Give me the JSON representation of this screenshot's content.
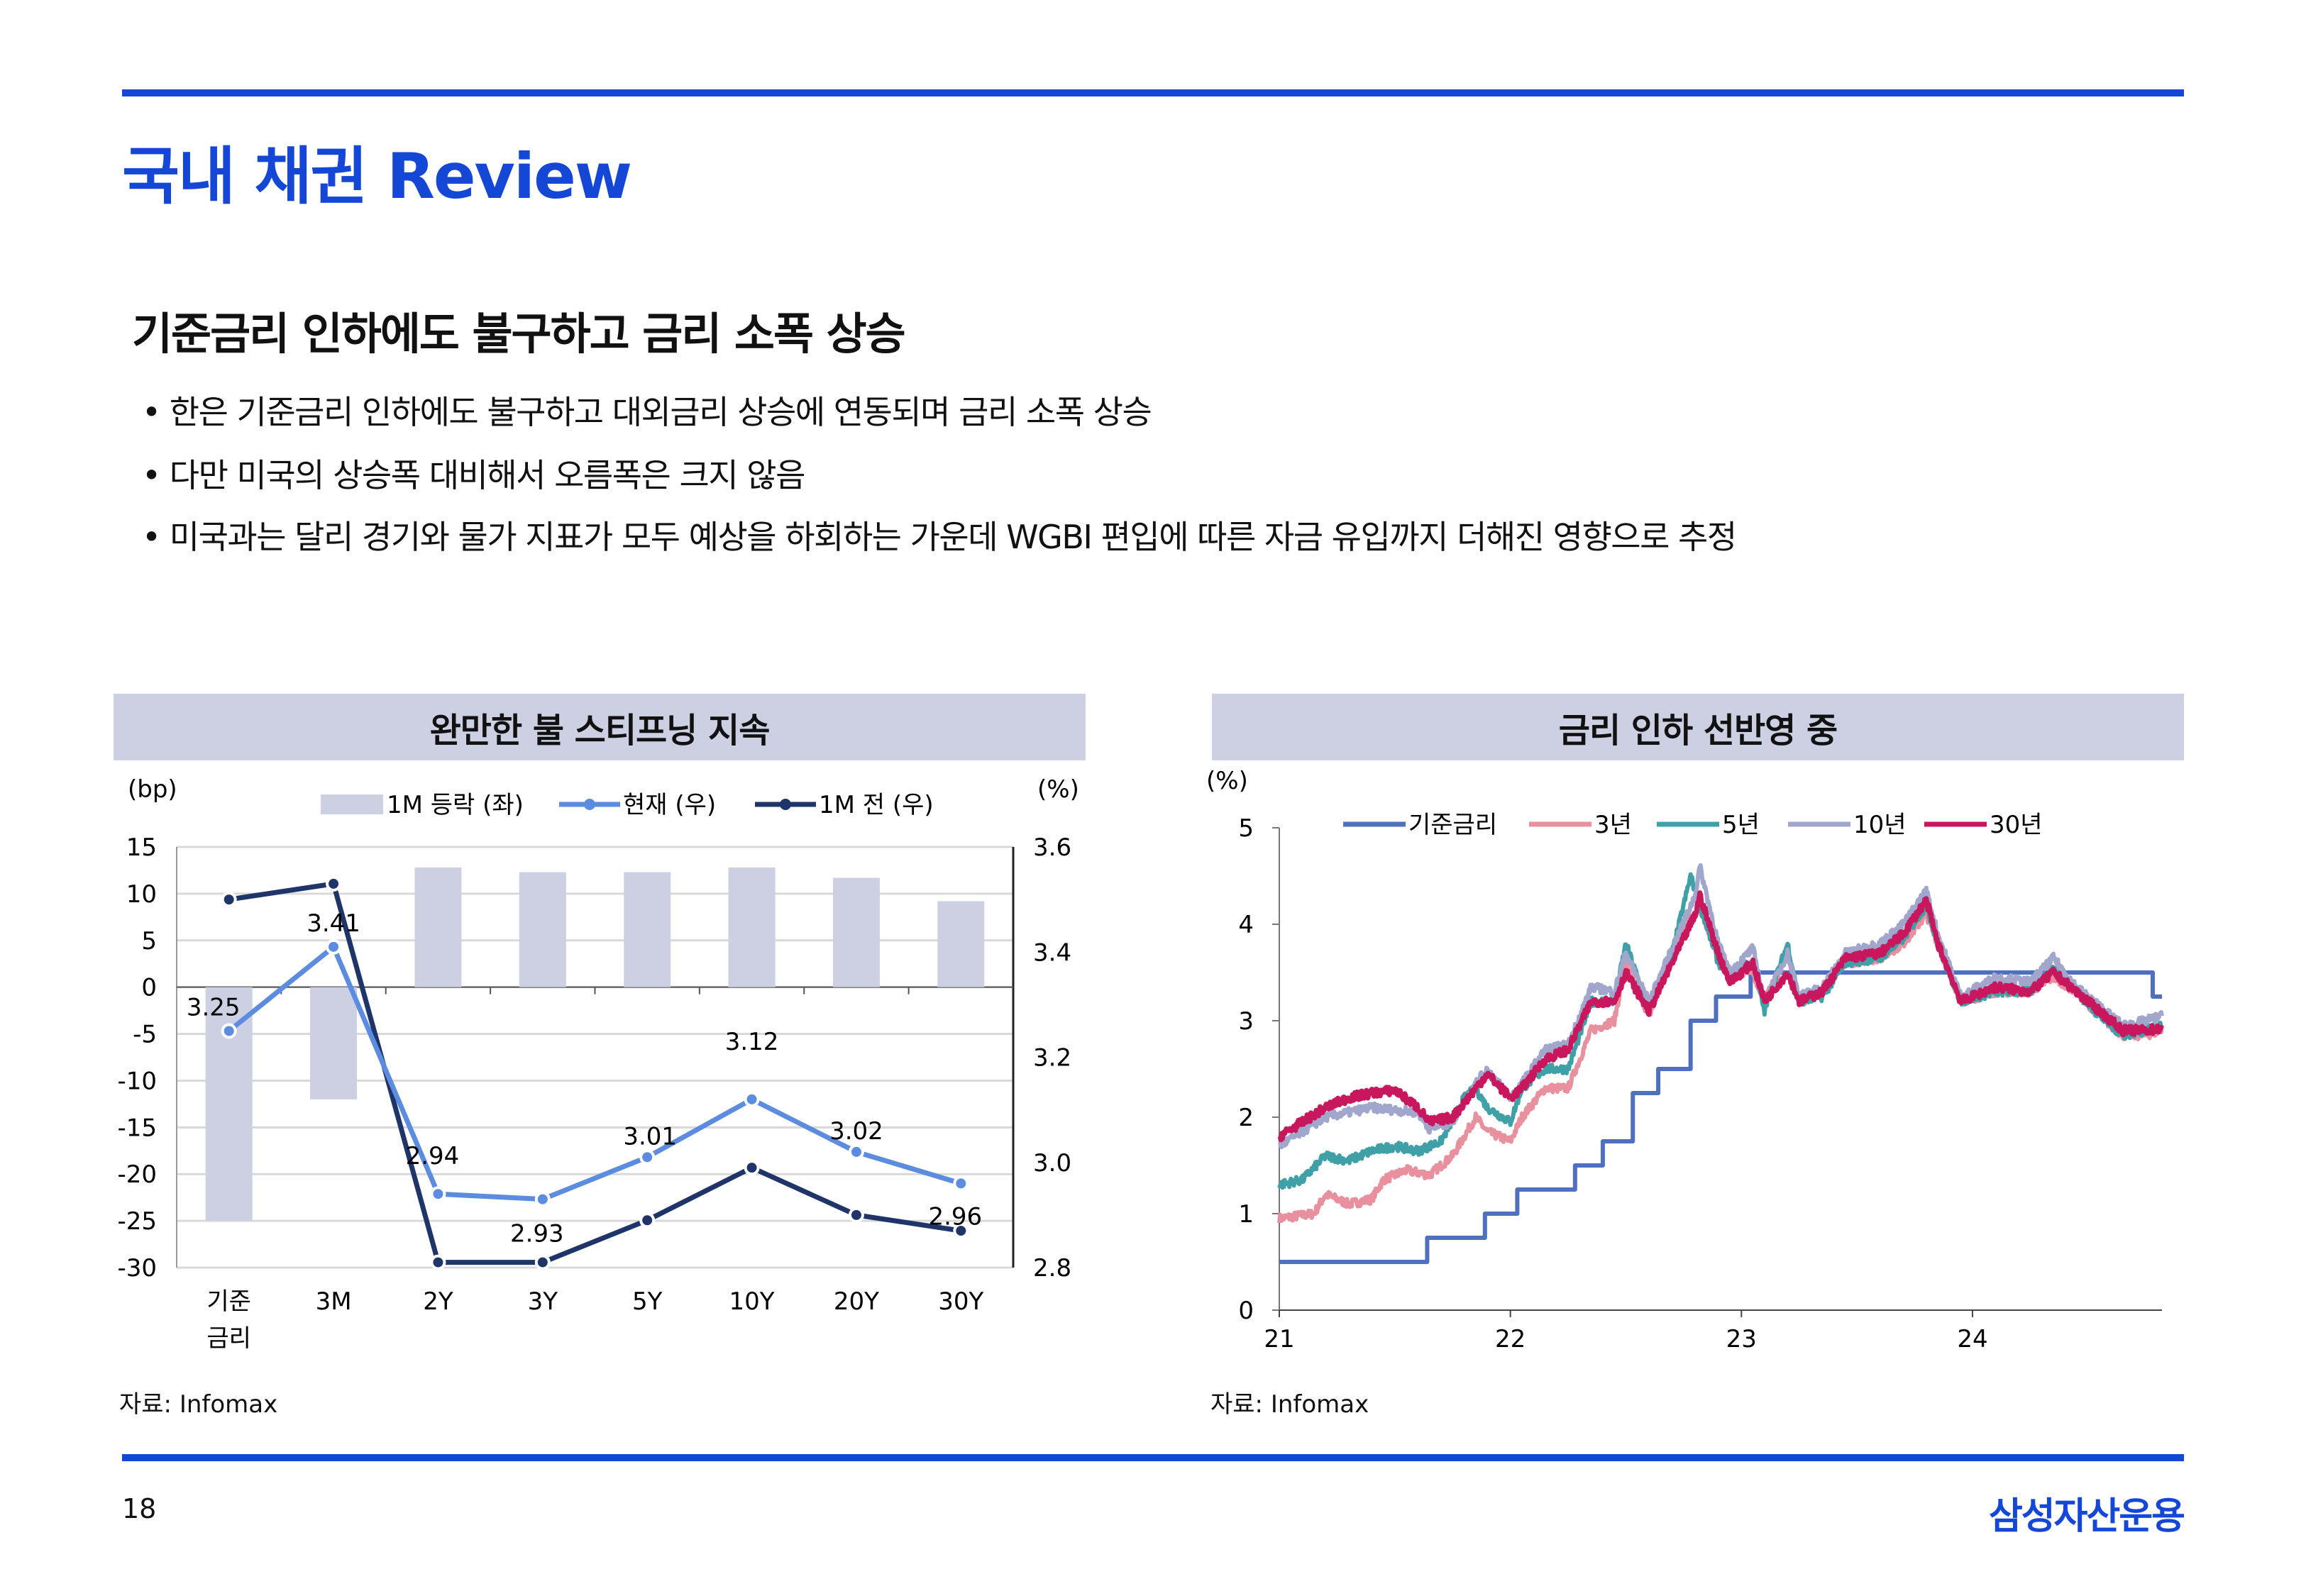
{
  "header": {
    "title": "국내 채권 Review"
  },
  "section": {
    "subtitle": "기준금리 인하에도 불구하고 금리 소폭 상승",
    "bullets": [
      "한은 기준금리 인하에도 불구하고 대외금리 상승에 연동되며 금리 소폭 상승",
      "다만 미국의 상승폭 대비해서 오름폭은 크지 않음",
      "미국과는 달리 경기와 물가 지표가 모두 예상을 하회하는 가운데 WGBI 편입에 따른 자금 유입까지 더해진 영향으로 추정"
    ]
  },
  "footer": {
    "page": "18",
    "logo": "삼성자산운용"
  },
  "chart_data": [
    {
      "type": "bar",
      "title": "완만한 불 스티프닝 지속",
      "source": "자료: Infomax",
      "ylabel_left": "(bp)",
      "ylabel_right": "(%)",
      "ylim_left": [
        -30,
        15
      ],
      "ylim_right": [
        2.8,
        3.6
      ],
      "yticks_left": [
        "15",
        "10",
        "5",
        "0",
        "-5",
        "-10",
        "-15",
        "-20",
        "-25",
        "-30"
      ],
      "yticks_right": [
        "3.6",
        "3.4",
        "3.2",
        "3.0",
        "2.8"
      ],
      "categories": [
        "기준\n금리",
        "3M",
        "2Y",
        "3Y",
        "5Y",
        "10Y",
        "20Y",
        "30Y"
      ],
      "legend": [
        "1M 등락 (좌)",
        "현재 (우)",
        "1M 전 (우)"
      ],
      "series": [
        {
          "name": "1M 등락 (좌)",
          "axis": "left",
          "type": "bar",
          "color": "#cdd0e3",
          "values": [
            -25,
            -12,
            12.8,
            12.3,
            12.3,
            12.8,
            11.7,
            9.2
          ]
        },
        {
          "name": "현재 (우)",
          "axis": "right",
          "type": "line",
          "color": "#5b8ce0",
          "values": [
            3.25,
            3.41,
            2.94,
            2.93,
            3.01,
            3.12,
            3.02,
            2.96
          ],
          "labels": [
            "3.25",
            "3.41",
            "2.94",
            "2.93",
            "3.01",
            "3.12",
            "3.02",
            "2.96"
          ]
        },
        {
          "name": "1M 전 (우)",
          "axis": "right",
          "type": "line",
          "color": "#1f3468",
          "values": [
            3.5,
            3.53,
            2.81,
            2.81,
            2.89,
            2.99,
            2.9,
            2.87
          ]
        }
      ]
    },
    {
      "type": "line",
      "title": "금리 인하 선반영 중",
      "source": "자료: Infomax",
      "ylabel": "(%)",
      "ylim": [
        0,
        5
      ],
      "yticks": [
        "0",
        "1",
        "2",
        "3",
        "4",
        "5"
      ],
      "xlim": [
        2021.0,
        2024.82
      ],
      "xticks": [
        {
          "v": 2021,
          "label": "21"
        },
        {
          "v": 2022,
          "label": "22"
        },
        {
          "v": 2023,
          "label": "23"
        },
        {
          "v": 2024,
          "label": "24"
        }
      ],
      "series": [
        {
          "name": "기준금리",
          "color": "#4f6fbf",
          "step": true,
          "points": [
            [
              2021.0,
              0.5
            ],
            [
              2021.64,
              0.75
            ],
            [
              2021.89,
              1.0
            ],
            [
              2022.03,
              1.25
            ],
            [
              2022.28,
              1.5
            ],
            [
              2022.4,
              1.75
            ],
            [
              2022.53,
              2.25
            ],
            [
              2022.64,
              2.5
            ],
            [
              2022.78,
              3.0
            ],
            [
              2022.89,
              3.25
            ],
            [
              2023.04,
              3.5
            ],
            [
              2024.78,
              3.25
            ],
            [
              2024.82,
              3.25
            ]
          ]
        },
        {
          "name": "3년",
          "color": "#e8909e",
          "points": [
            [
              2021.0,
              0.95
            ],
            [
              2021.15,
              1.0
            ],
            [
              2021.2,
              1.2
            ],
            [
              2021.3,
              1.1
            ],
            [
              2021.4,
              1.15
            ],
            [
              2021.45,
              1.35
            ],
            [
              2021.55,
              1.45
            ],
            [
              2021.65,
              1.4
            ],
            [
              2021.75,
              1.6
            ],
            [
              2021.85,
              2.0
            ],
            [
              2021.9,
              1.85
            ],
            [
              2022.0,
              1.75
            ],
            [
              2022.05,
              2.0
            ],
            [
              2022.15,
              2.3
            ],
            [
              2022.25,
              2.3
            ],
            [
              2022.35,
              2.9
            ],
            [
              2022.45,
              3.0
            ],
            [
              2022.5,
              3.6
            ],
            [
              2022.6,
              3.05
            ],
            [
              2022.7,
              3.65
            ],
            [
              2022.8,
              4.3
            ],
            [
              2022.9,
              3.65
            ],
            [
              2022.95,
              3.5
            ],
            [
              2023.05,
              3.5
            ],
            [
              2023.1,
              3.2
            ],
            [
              2023.2,
              3.7
            ],
            [
              2023.25,
              3.2
            ],
            [
              2023.35,
              3.3
            ],
            [
              2023.45,
              3.6
            ],
            [
              2023.6,
              3.65
            ],
            [
              2023.7,
              3.8
            ],
            [
              2023.8,
              4.1
            ],
            [
              2023.85,
              3.8
            ],
            [
              2023.95,
              3.2
            ],
            [
              2024.1,
              3.3
            ],
            [
              2024.25,
              3.3
            ],
            [
              2024.35,
              3.45
            ],
            [
              2024.45,
              3.3
            ],
            [
              2024.55,
              3.05
            ],
            [
              2024.65,
              2.85
            ],
            [
              2024.75,
              2.85
            ],
            [
              2024.82,
              2.9
            ]
          ]
        },
        {
          "name": "5년",
          "color": "#3fa0a8",
          "points": [
            [
              2021.0,
              1.3
            ],
            [
              2021.1,
              1.35
            ],
            [
              2021.2,
              1.6
            ],
            [
              2021.3,
              1.55
            ],
            [
              2021.4,
              1.65
            ],
            [
              2021.5,
              1.7
            ],
            [
              2021.6,
              1.65
            ],
            [
              2021.7,
              1.75
            ],
            [
              2021.8,
              2.2
            ],
            [
              2021.85,
              2.3
            ],
            [
              2021.9,
              2.1
            ],
            [
              2022.0,
              1.95
            ],
            [
              2022.05,
              2.3
            ],
            [
              2022.15,
              2.5
            ],
            [
              2022.25,
              2.5
            ],
            [
              2022.35,
              3.2
            ],
            [
              2022.45,
              3.2
            ],
            [
              2022.5,
              3.8
            ],
            [
              2022.6,
              3.1
            ],
            [
              2022.7,
              3.7
            ],
            [
              2022.78,
              4.5
            ],
            [
              2022.82,
              4.2
            ],
            [
              2022.9,
              3.6
            ],
            [
              2022.95,
              3.5
            ],
            [
              2023.05,
              3.6
            ],
            [
              2023.1,
              3.1
            ],
            [
              2023.2,
              3.8
            ],
            [
              2023.25,
              3.2
            ],
            [
              2023.35,
              3.25
            ],
            [
              2023.45,
              3.6
            ],
            [
              2023.6,
              3.65
            ],
            [
              2023.7,
              3.85
            ],
            [
              2023.8,
              4.2
            ],
            [
              2023.85,
              3.8
            ],
            [
              2023.95,
              3.2
            ],
            [
              2024.1,
              3.3
            ],
            [
              2024.25,
              3.3
            ],
            [
              2024.35,
              3.55
            ],
            [
              2024.45,
              3.3
            ],
            [
              2024.55,
              3.05
            ],
            [
              2024.65,
              2.85
            ],
            [
              2024.75,
              2.9
            ],
            [
              2024.82,
              2.95
            ]
          ]
        },
        {
          "name": "10년",
          "color": "#a1a7cc",
          "points": [
            [
              2021.0,
              1.7
            ],
            [
              2021.2,
              2.0
            ],
            [
              2021.4,
              2.1
            ],
            [
              2021.6,
              2.05
            ],
            [
              2021.65,
              1.88
            ],
            [
              2021.75,
              1.95
            ],
            [
              2021.85,
              2.35
            ],
            [
              2021.9,
              2.5
            ],
            [
              2022.0,
              2.2
            ],
            [
              2022.05,
              2.35
            ],
            [
              2022.15,
              2.7
            ],
            [
              2022.25,
              2.75
            ],
            [
              2022.35,
              3.35
            ],
            [
              2022.45,
              3.3
            ],
            [
              2022.5,
              3.7
            ],
            [
              2022.6,
              3.2
            ],
            [
              2022.7,
              3.75
            ],
            [
              2022.8,
              4.3
            ],
            [
              2022.82,
              4.6
            ],
            [
              2022.9,
              3.8
            ],
            [
              2022.95,
              3.5
            ],
            [
              2023.05,
              3.75
            ],
            [
              2023.1,
              3.2
            ],
            [
              2023.2,
              3.7
            ],
            [
              2023.25,
              3.25
            ],
            [
              2023.35,
              3.35
            ],
            [
              2023.45,
              3.7
            ],
            [
              2023.6,
              3.8
            ],
            [
              2023.7,
              4.0
            ],
            [
              2023.8,
              4.35
            ],
            [
              2023.85,
              3.9
            ],
            [
              2023.95,
              3.25
            ],
            [
              2024.1,
              3.45
            ],
            [
              2024.25,
              3.4
            ],
            [
              2024.35,
              3.65
            ],
            [
              2024.45,
              3.35
            ],
            [
              2024.55,
              3.15
            ],
            [
              2024.65,
              2.95
            ],
            [
              2024.75,
              3.0
            ],
            [
              2024.82,
              3.05
            ]
          ]
        },
        {
          "name": "30년",
          "color": "#c8175d",
          "points": [
            [
              2021.0,
              1.8
            ],
            [
              2021.1,
              1.95
            ],
            [
              2021.2,
              2.1
            ],
            [
              2021.3,
              2.2
            ],
            [
              2021.4,
              2.25
            ],
            [
              2021.5,
              2.28
            ],
            [
              2021.6,
              2.1
            ],
            [
              2021.65,
              1.95
            ],
            [
              2021.75,
              2.0
            ],
            [
              2021.85,
              2.3
            ],
            [
              2021.9,
              2.45
            ],
            [
              2022.0,
              2.2
            ],
            [
              2022.05,
              2.3
            ],
            [
              2022.15,
              2.6
            ],
            [
              2022.25,
              2.7
            ],
            [
              2022.35,
              3.2
            ],
            [
              2022.45,
              3.2
            ],
            [
              2022.5,
              3.5
            ],
            [
              2022.6,
              3.1
            ],
            [
              2022.7,
              3.6
            ],
            [
              2022.8,
              4.1
            ],
            [
              2022.82,
              4.3
            ],
            [
              2022.9,
              3.7
            ],
            [
              2022.95,
              3.4
            ],
            [
              2023.05,
              3.6
            ],
            [
              2023.1,
              3.2
            ],
            [
              2023.2,
              3.5
            ],
            [
              2023.25,
              3.2
            ],
            [
              2023.35,
              3.3
            ],
            [
              2023.45,
              3.65
            ],
            [
              2023.6,
              3.7
            ],
            [
              2023.7,
              3.9
            ],
            [
              2023.8,
              4.25
            ],
            [
              2023.85,
              3.8
            ],
            [
              2023.95,
              3.2
            ],
            [
              2024.1,
              3.35
            ],
            [
              2024.25,
              3.3
            ],
            [
              2024.35,
              3.5
            ],
            [
              2024.45,
              3.3
            ],
            [
              2024.55,
              3.1
            ],
            [
              2024.65,
              2.9
            ],
            [
              2024.75,
              2.9
            ],
            [
              2024.82,
              2.92
            ]
          ]
        }
      ]
    }
  ]
}
